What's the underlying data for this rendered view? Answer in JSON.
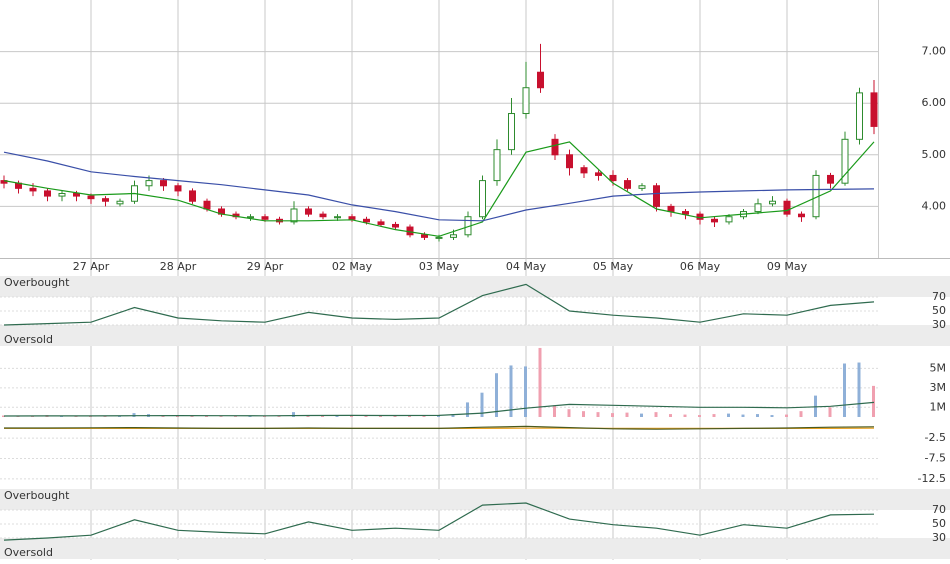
{
  "chart_data": [
    {
      "type": "candlestick",
      "open": [
        4.5,
        4.45,
        4.35,
        4.3,
        4.2,
        4.25,
        4.2,
        4.15,
        4.05,
        4.1,
        4.4,
        4.5,
        4.4,
        4.3,
        4.1,
        3.95,
        3.85,
        3.78,
        3.8,
        3.75,
        3.7,
        3.95,
        3.85,
        3.78,
        3.8,
        3.75,
        3.7,
        3.65,
        3.6,
        3.45,
        3.38,
        3.4,
        3.45,
        3.8,
        4.5,
        5.1,
        5.8,
        6.6,
        5.3,
        5.0,
        4.75,
        4.65,
        4.6,
        4.5,
        4.35,
        4.4,
        4.0,
        3.9,
        3.85,
        3.75,
        3.7,
        3.8,
        3.9,
        4.05,
        4.1,
        3.85,
        3.8,
        4.6,
        4.45,
        5.3,
        6.2
      ],
      "high": [
        4.6,
        4.5,
        4.45,
        4.35,
        4.3,
        4.3,
        4.25,
        4.2,
        4.15,
        4.5,
        4.6,
        4.55,
        4.45,
        4.35,
        4.15,
        4.0,
        3.9,
        3.85,
        3.85,
        3.8,
        4.1,
        4.0,
        3.9,
        3.85,
        3.85,
        3.8,
        3.75,
        3.7,
        3.65,
        3.5,
        3.45,
        3.55,
        3.9,
        4.6,
        5.3,
        6.1,
        6.8,
        7.15,
        5.4,
        5.1,
        4.8,
        4.7,
        4.7,
        4.55,
        4.45,
        4.45,
        4.05,
        3.95,
        3.9,
        3.8,
        3.85,
        3.95,
        4.15,
        4.2,
        4.15,
        3.9,
        4.7,
        4.65,
        5.45,
        6.3,
        6.45
      ],
      "low": [
        4.35,
        4.25,
        4.2,
        4.1,
        4.1,
        4.1,
        4.05,
        4.0,
        4.0,
        4.05,
        4.3,
        4.3,
        4.2,
        4.05,
        3.9,
        3.8,
        3.75,
        3.72,
        3.7,
        3.65,
        3.65,
        3.8,
        3.75,
        3.72,
        3.7,
        3.65,
        3.6,
        3.55,
        3.4,
        3.35,
        3.32,
        3.35,
        3.4,
        3.75,
        4.4,
        5.0,
        5.7,
        6.2,
        4.9,
        4.6,
        4.55,
        4.5,
        4.4,
        4.3,
        4.3,
        3.9,
        3.8,
        3.75,
        3.65,
        3.6,
        3.65,
        3.75,
        3.85,
        4.0,
        3.8,
        3.7,
        3.75,
        4.35,
        4.4,
        5.2,
        5.4
      ],
      "close": [
        4.45,
        4.35,
        4.3,
        4.2,
        4.25,
        4.2,
        4.15,
        4.1,
        4.1,
        4.4,
        4.5,
        4.4,
        4.3,
        4.1,
        3.95,
        3.85,
        3.8,
        3.8,
        3.75,
        3.7,
        3.95,
        3.85,
        3.8,
        3.8,
        3.75,
        3.7,
        3.65,
        3.6,
        3.45,
        3.4,
        3.4,
        3.45,
        3.8,
        4.5,
        5.1,
        5.8,
        6.3,
        6.3,
        5.0,
        4.75,
        4.65,
        4.6,
        4.5,
        4.35,
        4.4,
        4.0,
        3.9,
        3.85,
        3.75,
        3.7,
        3.8,
        3.9,
        4.05,
        4.1,
        3.85,
        3.8,
        4.6,
        4.45,
        5.3,
        6.2,
        5.55
      ],
      "up_color": "#2e8b2e",
      "down_color": "#c8102e",
      "series": [
        {
          "color": "#1a9a1a",
          "x": [
            0,
            3,
            6,
            9,
            12,
            15,
            18,
            21,
            24,
            27,
            30,
            33,
            36,
            39,
            42,
            45,
            48,
            51,
            54,
            57,
            60
          ],
          "values": [
            4.5,
            4.35,
            4.22,
            4.25,
            4.12,
            3.85,
            3.72,
            3.72,
            3.74,
            3.55,
            3.42,
            3.7,
            5.05,
            5.25,
            4.45,
            3.95,
            3.78,
            3.85,
            3.92,
            4.3,
            5.25
          ]
        },
        {
          "color": "#3a4fa8",
          "x": [
            0,
            3,
            6,
            9,
            12,
            15,
            18,
            21,
            24,
            27,
            30,
            33,
            36,
            39,
            42,
            45,
            48,
            51,
            54,
            57,
            60
          ],
          "values": [
            5.05,
            4.88,
            4.67,
            4.58,
            4.5,
            4.42,
            4.32,
            4.22,
            4.03,
            3.9,
            3.74,
            3.72,
            3.93,
            4.06,
            4.2,
            4.25,
            4.28,
            4.3,
            4.32,
            4.33,
            4.34
          ]
        }
      ],
      "xlim": [
        0,
        60
      ],
      "xticks": [
        {
          "value": 6,
          "label": "27 Apr"
        },
        {
          "value": 12,
          "label": "28 Apr"
        },
        {
          "value": 18,
          "label": "29 Apr"
        },
        {
          "value": 24,
          "label": "02 May"
        },
        {
          "value": 30,
          "label": "03 May"
        },
        {
          "value": 36,
          "label": "04 May"
        },
        {
          "value": 42,
          "label": "05 May"
        },
        {
          "value": 48,
          "label": "06 May"
        },
        {
          "value": 54,
          "label": "09 May"
        }
      ],
      "ylim": [
        3,
        8
      ],
      "yticks": [
        {
          "value": 4,
          "label": "4.00"
        },
        {
          "value": 5,
          "label": "5.00"
        },
        {
          "value": 6,
          "label": "6.00"
        },
        {
          "value": 7,
          "label": "7.00"
        }
      ],
      "grid": true
    },
    {
      "type": "line",
      "series": [
        {
          "color": "#2f6b4f",
          "x": [
            0,
            3,
            6,
            9,
            12,
            15,
            18,
            21,
            24,
            27,
            30,
            33,
            36,
            39,
            42,
            45,
            48,
            51,
            54,
            57,
            60
          ],
          "values": [
            30,
            32,
            34,
            55,
            40,
            36,
            34,
            48,
            40,
            38,
            40,
            72,
            88,
            50,
            44,
            40,
            34,
            46,
            44,
            58,
            63
          ]
        }
      ],
      "bands": [
        {
          "label": "Overbought",
          "from": 70,
          "to": 100
        },
        {
          "label": "Oversold",
          "from": 0,
          "to": 30
        }
      ],
      "ylim": [
        0,
        100
      ],
      "yticks": [
        30,
        50,
        70
      ]
    },
    {
      "type": "bar",
      "values": [
        150000,
        100000,
        80000,
        200000,
        120000,
        90000,
        100000,
        80000,
        90000,
        400000,
        300000,
        150000,
        120000,
        100000,
        110000,
        90000,
        80000,
        100000,
        120000,
        90000,
        500000,
        200000,
        150000,
        100000,
        120000,
        130000,
        100000,
        110000,
        150000,
        200000,
        180000,
        300000,
        1500000,
        2500000,
        4500000,
        5300000,
        5200000,
        7100000,
        1200000,
        800000,
        600000,
        500000,
        400000,
        450000,
        350000,
        500000,
        300000,
        250000,
        200000,
        300000,
        350000,
        250000,
        300000,
        200000,
        250000,
        600000,
        2200000,
        1000000,
        5500000,
        5600000,
        3200000
      ],
      "up_color": "#8fb0d8",
      "down_color": "#f0a0b0",
      "series": [
        {
          "color": "#2f6b4f",
          "x": [
            0,
            3,
            6,
            9,
            12,
            15,
            18,
            21,
            24,
            27,
            30,
            33,
            36,
            39,
            42,
            45,
            48,
            51,
            54,
            57,
            60
          ],
          "values": [
            100000,
            110000,
            110000,
            130000,
            140000,
            130000,
            120000,
            150000,
            160000,
            150000,
            160000,
            400000,
            900000,
            1300000,
            1200000,
            1100000,
            1000000,
            1000000,
            950000,
            1100000,
            1500000
          ]
        }
      ],
      "ylim": [
        0,
        7300000
      ],
      "yticks": [
        {
          "value": 1000000,
          "label": "1M"
        },
        {
          "value": 3000000,
          "label": "3M"
        },
        {
          "value": 5000000,
          "label": "5M"
        }
      ]
    },
    {
      "type": "line",
      "series": [
        {
          "color": "#e8a020",
          "x": [
            0,
            3,
            6,
            9,
            12,
            15,
            18,
            21,
            24,
            27,
            30,
            33,
            36,
            39,
            42,
            45,
            48,
            51,
            54,
            57,
            60
          ],
          "values": [
            -0.1,
            -0.1,
            -0.1,
            -0.1,
            -0.1,
            -0.1,
            -0.1,
            -0.1,
            -0.1,
            -0.1,
            -0.1,
            -0.1,
            -0.05,
            -0.05,
            -0.1,
            -0.1,
            -0.1,
            -0.1,
            -0.1,
            -0.1,
            -0.05
          ]
        },
        {
          "color": "#4a5a20",
          "x": [
            0,
            3,
            6,
            9,
            12,
            15,
            18,
            21,
            24,
            27,
            30,
            33,
            36,
            39,
            42,
            45,
            48,
            51,
            54,
            57,
            60
          ],
          "values": [
            0,
            0,
            0.05,
            0.1,
            0,
            -0.1,
            -0.1,
            0,
            -0.1,
            -0.1,
            -0.1,
            0.2,
            0.4,
            0.1,
            -0.2,
            -0.3,
            -0.2,
            -0.1,
            0,
            0.2,
            0.3
          ]
        }
      ],
      "ylim": [
        -15,
        2.7
      ],
      "yticks": [
        -12.5,
        -7.5,
        -2.5
      ]
    },
    {
      "type": "line",
      "series": [
        {
          "color": "#2f6b4f",
          "x": [
            0,
            3,
            6,
            9,
            12,
            15,
            18,
            21,
            24,
            27,
            30,
            33,
            36,
            39,
            42,
            45,
            48,
            51,
            54,
            57,
            60
          ],
          "values": [
            27,
            30,
            34,
            56,
            41,
            38,
            36,
            53,
            41,
            44,
            41,
            77,
            80,
            57,
            49,
            44,
            34,
            49,
            44,
            63,
            64
          ]
        }
      ],
      "bands": [
        {
          "label": "Overbought",
          "from": 70,
          "to": 100
        },
        {
          "label": "Oversold",
          "from": 0,
          "to": 30
        }
      ],
      "ylim": [
        0,
        100
      ],
      "yticks": [
        30,
        50,
        70
      ]
    }
  ]
}
